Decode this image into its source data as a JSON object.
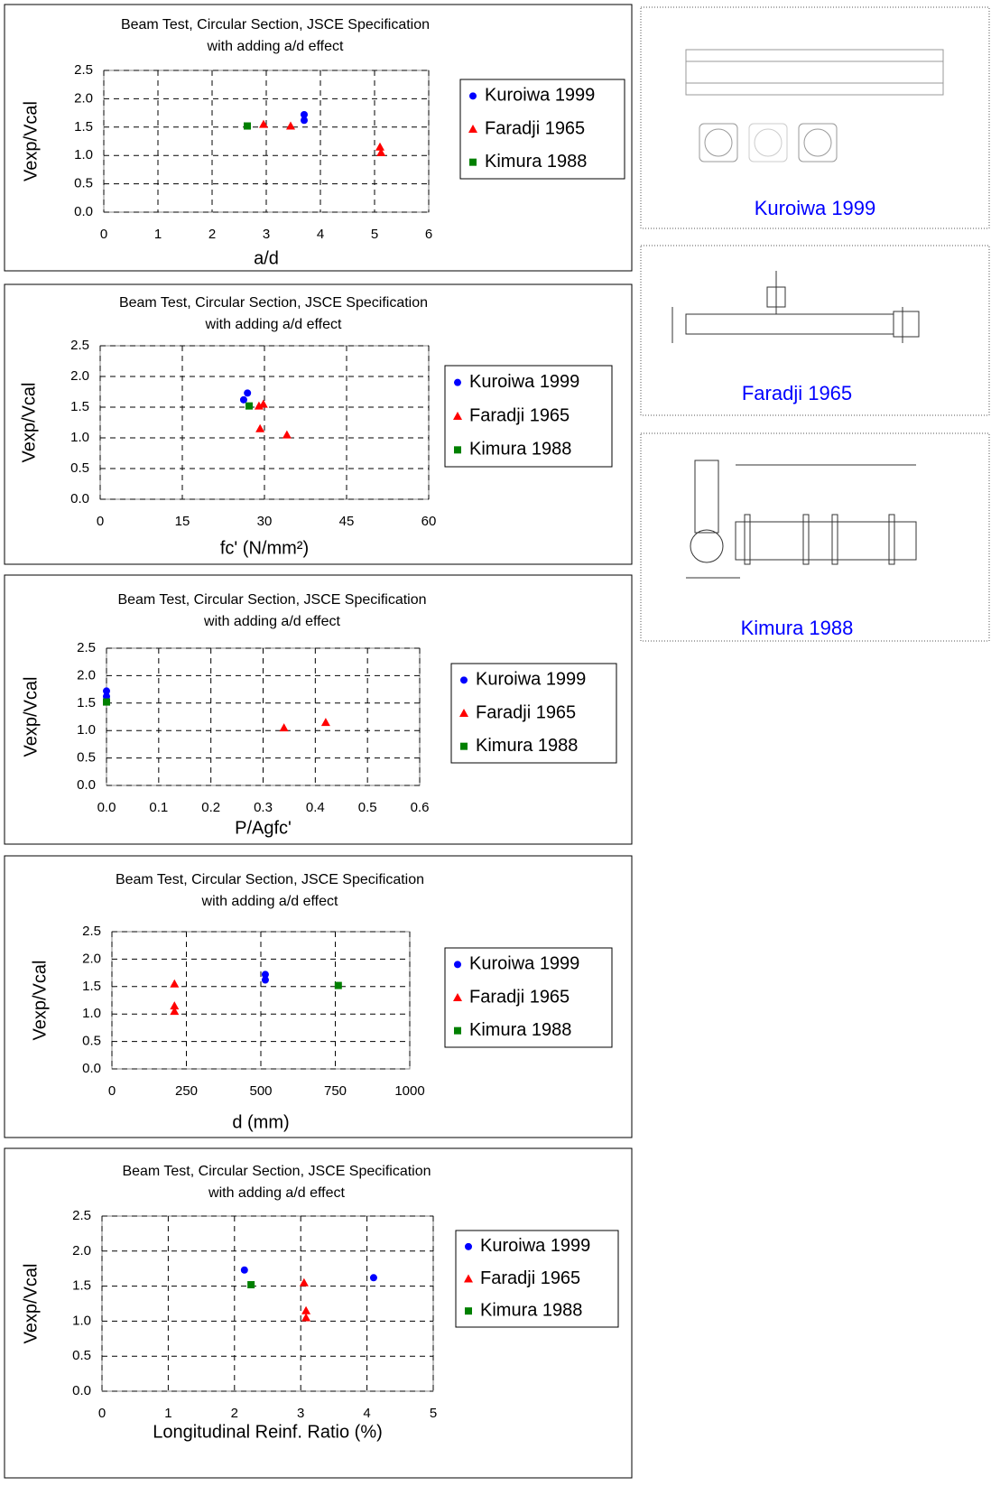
{
  "chart_data": [
    {
      "type": "scatter",
      "title": "Beam Test, Circular Section, JSCE Specification",
      "subtitle": "with adding a/d effect",
      "xlabel": "a/d",
      "ylabel": "Vexp/Vcal",
      "grid": true,
      "xlim": [
        0,
        6
      ],
      "xticks": [
        0,
        1,
        2,
        3,
        4,
        5,
        6
      ],
      "ylim": [
        0,
        2.5
      ],
      "yticks": [
        {
          "value": 0,
          "label": "0.0"
        },
        {
          "value": 0.5,
          "label": "0.5"
        },
        {
          "value": 1,
          "label": "1.0"
        },
        {
          "value": 1.5,
          "label": "1.5"
        },
        {
          "value": 2,
          "label": "2.0"
        },
        {
          "value": 2.5,
          "label": "2.5"
        }
      ],
      "series": [
        {
          "name": "Kuroiwa 1999",
          "color": "#0000ff",
          "marker": "circle",
          "x": [
            3.7,
            3.7
          ],
          "values": [
            1.72,
            1.62
          ]
        },
        {
          "name": "Faradji 1965",
          "color": "#ff0000",
          "marker": "triangle",
          "x": [
            2.95,
            3.45,
            5.1,
            5.12
          ],
          "values": [
            1.55,
            1.52,
            1.15,
            1.05
          ]
        },
        {
          "name": "Kimura 1988",
          "color": "#008000",
          "marker": "square",
          "x": [
            2.65
          ],
          "values": [
            1.52
          ]
        }
      ]
    },
    {
      "type": "scatter",
      "title": "Beam Test, Circular Section, JSCE Specification",
      "subtitle": "with adding a/d effect",
      "xlabel": "fc' (N/mm²)",
      "ylabel": "Vexp/Vcal",
      "grid": true,
      "xlim": [
        0,
        60
      ],
      "xticks": [
        0,
        15,
        30,
        45,
        60
      ],
      "ylim": [
        0,
        2.5
      ],
      "yticks": [
        {
          "value": 0,
          "label": "0.0"
        },
        {
          "value": 0.5,
          "label": "0.5"
        },
        {
          "value": 1,
          "label": "1.0"
        },
        {
          "value": 1.5,
          "label": "1.5"
        },
        {
          "value": 2,
          "label": "2.0"
        },
        {
          "value": 2.5,
          "label": "2.5"
        }
      ],
      "series": [
        {
          "name": "Kuroiwa 1999",
          "color": "#0000ff",
          "marker": "circle",
          "x": [
            26.2,
            26.9
          ],
          "values": [
            1.62,
            1.73
          ]
        },
        {
          "name": "Faradji 1965",
          "color": "#ff0000",
          "marker": "triangle",
          "x": [
            29,
            29.8,
            29.2,
            34.1
          ],
          "values": [
            1.52,
            1.55,
            1.15,
            1.05
          ]
        },
        {
          "name": "Kimura 1988",
          "color": "#008000",
          "marker": "square",
          "x": [
            27.2
          ],
          "values": [
            1.52
          ]
        }
      ]
    },
    {
      "type": "scatter",
      "title": "Beam Test, Circular Section, JSCE Specification",
      "subtitle": "with adding a/d effect",
      "xlabel": "P/Agfc'",
      "ylabel": "Vexp/Vcal",
      "grid": true,
      "xlim": [
        0,
        0.6
      ],
      "xticks": [
        {
          "value": 0,
          "label": "0.0"
        },
        0.1,
        0.2,
        0.3,
        0.4,
        0.5,
        0.6
      ],
      "ylim": [
        0,
        2.5
      ],
      "yticks": [
        {
          "value": 0,
          "label": "0.0"
        },
        {
          "value": 0.5,
          "label": "0.5"
        },
        {
          "value": 1,
          "label": "1.0"
        },
        {
          "value": 1.5,
          "label": "1.5"
        },
        {
          "value": 2,
          "label": "2.0"
        },
        {
          "value": 2.5,
          "label": "2.5"
        }
      ],
      "series": [
        {
          "name": "Kuroiwa 1999",
          "color": "#0000ff",
          "marker": "circle",
          "x": [
            0,
            0
          ],
          "values": [
            1.72,
            1.62
          ]
        },
        {
          "name": "Faradji 1965",
          "color": "#ff0000",
          "marker": "triangle",
          "x": [
            0.34,
            0.42
          ],
          "values": [
            1.05,
            1.15
          ]
        },
        {
          "name": "Kimura 1988",
          "color": "#008000",
          "marker": "square",
          "x": [
            0
          ],
          "values": [
            1.52
          ]
        }
      ]
    },
    {
      "type": "scatter",
      "title": "Beam Test, Circular Section, JSCE Specification",
      "subtitle": "with adding a/d effect",
      "xlabel": "d (mm)",
      "ylabel": "Vexp/Vcal",
      "grid": true,
      "xlim": [
        0,
        1000
      ],
      "xticks": [
        0,
        250,
        500,
        750,
        1000
      ],
      "ylim": [
        0,
        2.5
      ],
      "yticks": [
        {
          "value": 0,
          "label": "0.0"
        },
        {
          "value": 0.5,
          "label": "0.5"
        },
        {
          "value": 1,
          "label": "1.0"
        },
        {
          "value": 1.5,
          "label": "1.5"
        },
        {
          "value": 2,
          "label": "2.0"
        },
        {
          "value": 2.5,
          "label": "2.5"
        }
      ],
      "series": [
        {
          "name": "Kuroiwa 1999",
          "color": "#0000ff",
          "marker": "circle",
          "x": [
            515,
            515
          ],
          "values": [
            1.72,
            1.62
          ]
        },
        {
          "name": "Faradji 1965",
          "color": "#ff0000",
          "marker": "triangle",
          "x": [
            210,
            210,
            210
          ],
          "values": [
            1.55,
            1.15,
            1.05
          ]
        },
        {
          "name": "Kimura 1988",
          "color": "#008000",
          "marker": "square",
          "x": [
            760
          ],
          "values": [
            1.52
          ]
        }
      ]
    },
    {
      "type": "scatter",
      "title": "Beam Test, Circular Section, JSCE Specification",
      "subtitle": "with adding a/d effect",
      "xlabel": "Longitudinal Reinf. Ratio (%)",
      "ylabel": "Vexp/Vcal",
      "grid": true,
      "xlim": [
        0,
        5
      ],
      "xticks": [
        0,
        1,
        2,
        3,
        4,
        5
      ],
      "ylim": [
        0,
        2.5
      ],
      "yticks": [
        {
          "value": 0,
          "label": "0.0"
        },
        {
          "value": 0.5,
          "label": "0.5"
        },
        {
          "value": 1,
          "label": "1.0"
        },
        {
          "value": 1.5,
          "label": "1.5"
        },
        {
          "value": 2,
          "label": "2.0"
        },
        {
          "value": 2.5,
          "label": "2.5"
        }
      ],
      "series": [
        {
          "name": "Kuroiwa 1999",
          "color": "#0000ff",
          "marker": "circle",
          "x": [
            2.15,
            4.1
          ],
          "values": [
            1.73,
            1.62
          ]
        },
        {
          "name": "Faradji 1965",
          "color": "#ff0000",
          "marker": "triangle",
          "x": [
            3.05,
            3.08,
            3.08
          ],
          "values": [
            1.55,
            1.15,
            1.05
          ]
        },
        {
          "name": "Kimura 1988",
          "color": "#008000",
          "marker": "square",
          "x": [
            2.25
          ],
          "values": [
            1.52
          ]
        }
      ]
    }
  ],
  "figures": [
    {
      "caption": "Kuroiwa 1999"
    },
    {
      "caption": "Faradji 1965"
    },
    {
      "caption": "Kimura 1988"
    }
  ]
}
